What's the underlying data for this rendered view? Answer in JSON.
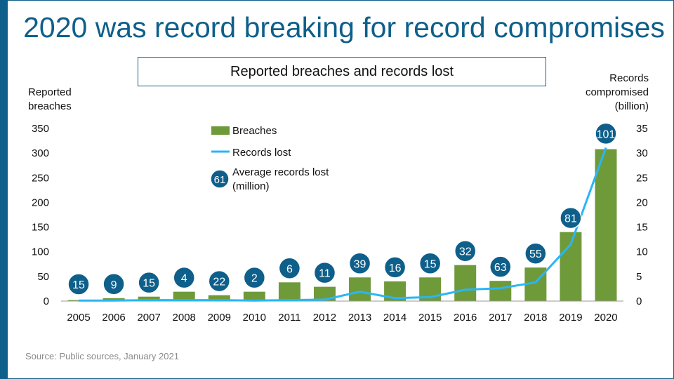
{
  "slide": {
    "title": "2020 was record breaking for record compromises",
    "source": "Source: Public sources, January 2021"
  },
  "colors": {
    "brand": "#0e5f8a",
    "bar": "#6f9a3a",
    "line": "#29b6f6",
    "badge": "#0e5f8a"
  },
  "chart_data": {
    "type": "bar",
    "title": "Reported breaches and records lost",
    "ylabel": "Reported breaches",
    "y2label": "Records compromised (billion)",
    "ylabel_lines": [
      "Reported",
      "breaches"
    ],
    "y2label_lines": [
      "Records",
      "compromised",
      "(billion)"
    ],
    "categories": [
      "2005",
      "2006",
      "2007",
      "2008",
      "2009",
      "2010",
      "2011",
      "2012",
      "2013",
      "2014",
      "2015",
      "2016",
      "2017",
      "2018",
      "2019",
      "2020"
    ],
    "ylim": [
      0,
      350
    ],
    "y2lim": [
      0,
      35
    ],
    "yticks": [
      0,
      50,
      100,
      150,
      200,
      250,
      300,
      350
    ],
    "y2ticks": [
      0,
      5,
      10,
      15,
      20,
      25,
      30,
      35
    ],
    "series": [
      {
        "name": "Breaches",
        "axis": "left",
        "kind": "bar",
        "values": [
          2,
          6,
          9,
          19,
          12,
          19,
          38,
          29,
          48,
          40,
          48,
          73,
          41,
          68,
          140,
          308
        ]
      },
      {
        "name": "Records lost",
        "axis": "right",
        "kind": "line",
        "values": [
          0.1,
          0.1,
          0.2,
          0.2,
          0.2,
          0.1,
          0.2,
          0.3,
          1.9,
          0.6,
          0.8,
          2.3,
          2.6,
          3.8,
          11.5,
          31.1
        ]
      },
      {
        "name": "Average records lost (million)",
        "kind": "badge",
        "values": [
          15,
          9,
          15,
          4,
          22,
          2,
          6,
          11,
          39,
          16,
          15,
          32,
          63,
          55,
          81,
          101
        ]
      }
    ],
    "legend": {
      "position": "top-left",
      "items": [
        {
          "label": "Breaches",
          "kind": "bar"
        },
        {
          "label": "Records lost",
          "kind": "line"
        },
        {
          "label_lines": [
            "Average records lost",
            "(million)"
          ],
          "kind": "badge",
          "sample": "61"
        }
      ]
    }
  }
}
